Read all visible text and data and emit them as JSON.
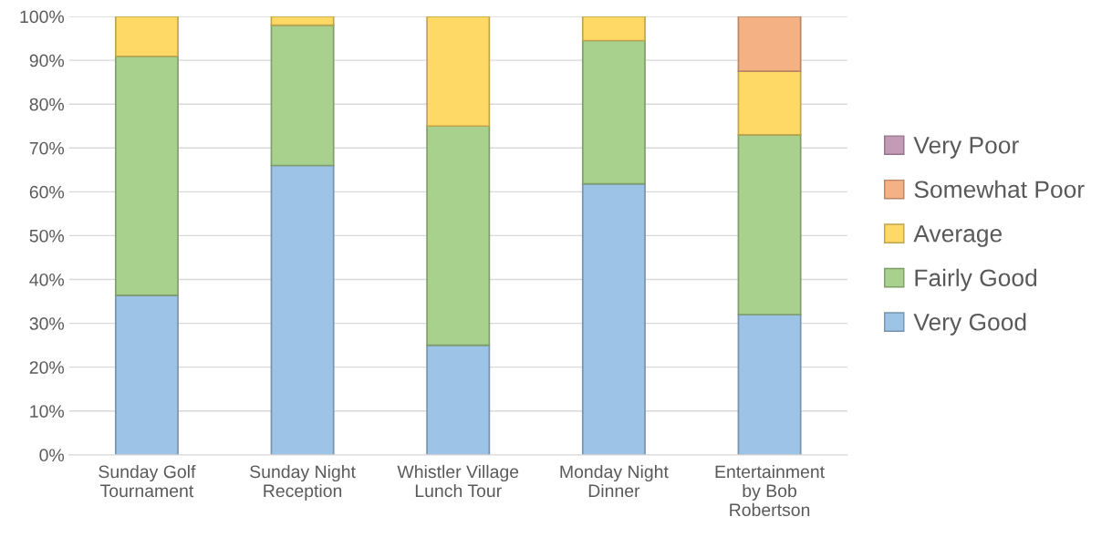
{
  "chart_data": {
    "type": "bar",
    "stacked": true,
    "categories": [
      "Sunday Golf\nTournament",
      "Sunday Night\nReception",
      "Whistler Village\nLunch Tour",
      "Monday Night\nDinner",
      "Entertainment\nby Bob\nRobertson"
    ],
    "series": [
      {
        "name": "Very Good",
        "color": "#9dc3e6",
        "values": [
          36.4,
          66,
          25,
          61.8,
          32
        ]
      },
      {
        "name": "Fairly Good",
        "color": "#a9d18e",
        "values": [
          54.5,
          32,
          50,
          32.7,
          41
        ]
      },
      {
        "name": "Average",
        "color": "#ffd966",
        "values": [
          9.1,
          2,
          25,
          5.5,
          14.5
        ]
      },
      {
        "name": "Somewhat Poor",
        "color": "#f4b183",
        "values": [
          0,
          0,
          0,
          0,
          12.5
        ]
      },
      {
        "name": "Very Poor",
        "color": "#c39bb6",
        "values": [
          0,
          0,
          0,
          0,
          0
        ]
      }
    ],
    "ylim": [
      0,
      100
    ],
    "yticks": [
      {
        "value": 0,
        "label": "0%"
      },
      {
        "value": 10,
        "label": "10%"
      },
      {
        "value": 20,
        "label": "20%"
      },
      {
        "value": 30,
        "label": "30%"
      },
      {
        "value": 40,
        "label": "40%"
      },
      {
        "value": 50,
        "label": "50%"
      },
      {
        "value": 60,
        "label": "60%"
      },
      {
        "value": 70,
        "label": "70%"
      },
      {
        "value": 80,
        "label": "80%"
      },
      {
        "value": 90,
        "label": "90%"
      },
      {
        "value": 100,
        "label": "100%"
      }
    ],
    "grid": "y",
    "legend": "right"
  }
}
